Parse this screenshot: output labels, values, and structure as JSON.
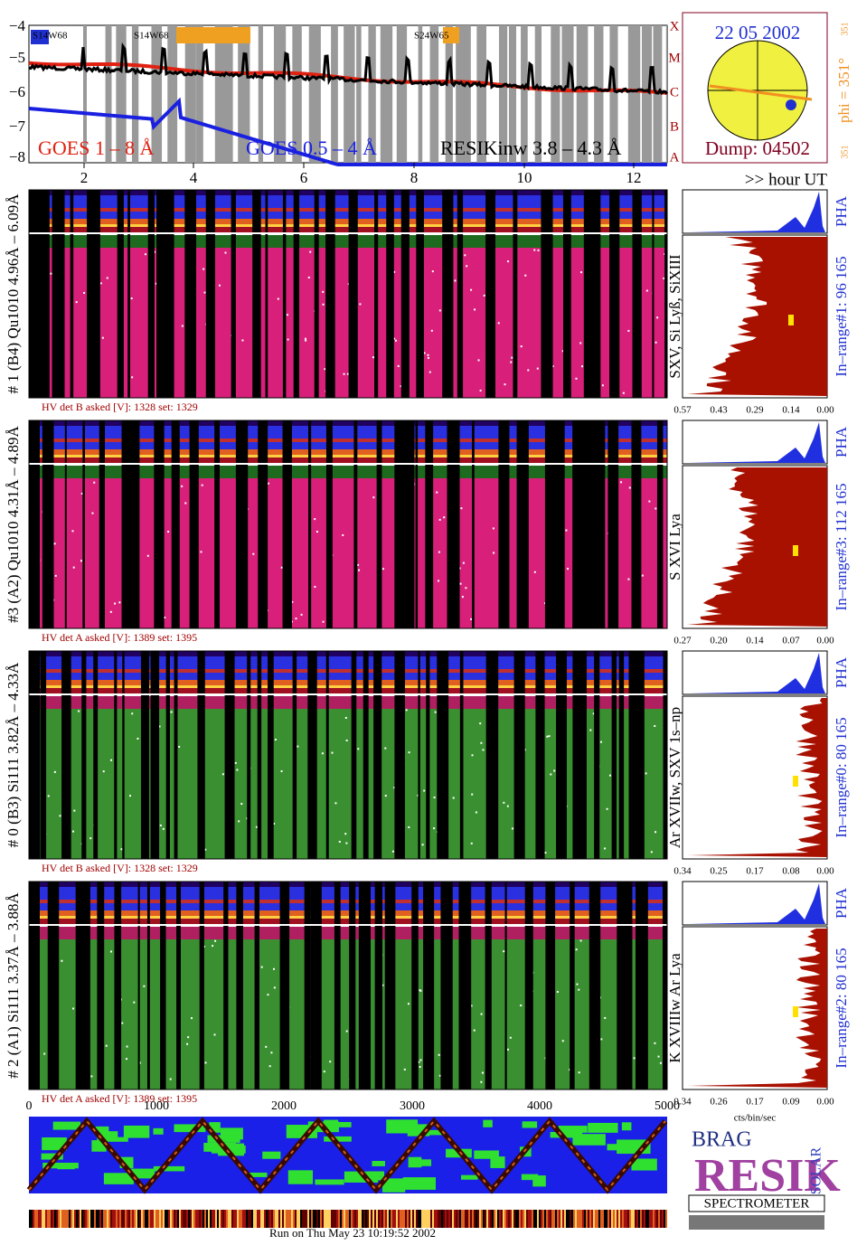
{
  "goes": {
    "yticks": [
      "−4",
      "−5",
      "−6",
      "−7",
      "−8"
    ],
    "class_labels": [
      "X",
      "M",
      "C",
      "B",
      "A"
    ],
    "regions": [
      "S14W68",
      "S14W68",
      "S24W65"
    ],
    "legend": [
      "GOES 1 – 8 Å",
      "GOES 0.5 – 4 Å",
      "RESIKinw 3.8 – 4.3 Å"
    ],
    "xticks": [
      "2",
      "4",
      "6",
      "8",
      "10",
      "12"
    ],
    "x_unit": ">> hour UT"
  },
  "sun": {
    "date": "22 05 2002",
    "dump": "Dump: 04502",
    "phi": "phi = 351°",
    "phi_top": "351",
    "phi_bottom": "351"
  },
  "panels": [
    {
      "label": "# 1 (B4) Qu1010 4.96Å – 6.09Å",
      "hv": "HV det B asked [V]:  1328 set:  1329",
      "pha": "PHA",
      "lines": "SXV, Si Lyß, SiXIII",
      "range": "In–range#1:   96 165",
      "xticks": [
        "0.57",
        "0.43",
        "0.29",
        "0.14",
        "0.00"
      ]
    },
    {
      "label": "#3 (A2) Qu1010  4.31Å – 4.89Å",
      "hv": "HV det A asked [V]:  1389 set:  1395",
      "pha": "PHA",
      "lines": "S XVI Lya",
      "range": "In–range#3:   112 165",
      "xticks": [
        "0.27",
        "0.20",
        "0.14",
        "0.07",
        "0.00"
      ]
    },
    {
      "label": "# 0 (B3) Si111  3.82Å – 4.33Å",
      "hv": "HV det B asked [V]:  1328 set:  1329",
      "pha": "PHA",
      "lines": "Ar XVIIw,  SXV 1s–np",
      "range": "In–range#0:   80 165",
      "xticks": [
        "0.34",
        "0.25",
        "0.17",
        "0.08",
        "0.00"
      ]
    },
    {
      "label": "# 2 (A1) Si111  3.37Å – 3.88Å",
      "hv": "HV det A asked [V]:  1389 set:  1395",
      "pha": "PHA",
      "lines": "K XVIIIw  Ar Lya",
      "range": "In–range#2:   80 165",
      "xticks": [
        "0.34",
        "0.26",
        "0.17",
        "0.09",
        "0.00"
      ]
    }
  ],
  "bottom": {
    "xticks": [
      "0",
      "1000",
      "2000",
      "3000",
      "4000",
      "5000"
    ],
    "unit": "cts/bin/sec",
    "run": "Run on Thu May 23 10:19:52 2002"
  },
  "logo": {
    "top": "BRAG",
    "main": "RESIK",
    "side": "SOLAR",
    "name": "SPECTROMETER"
  }
}
